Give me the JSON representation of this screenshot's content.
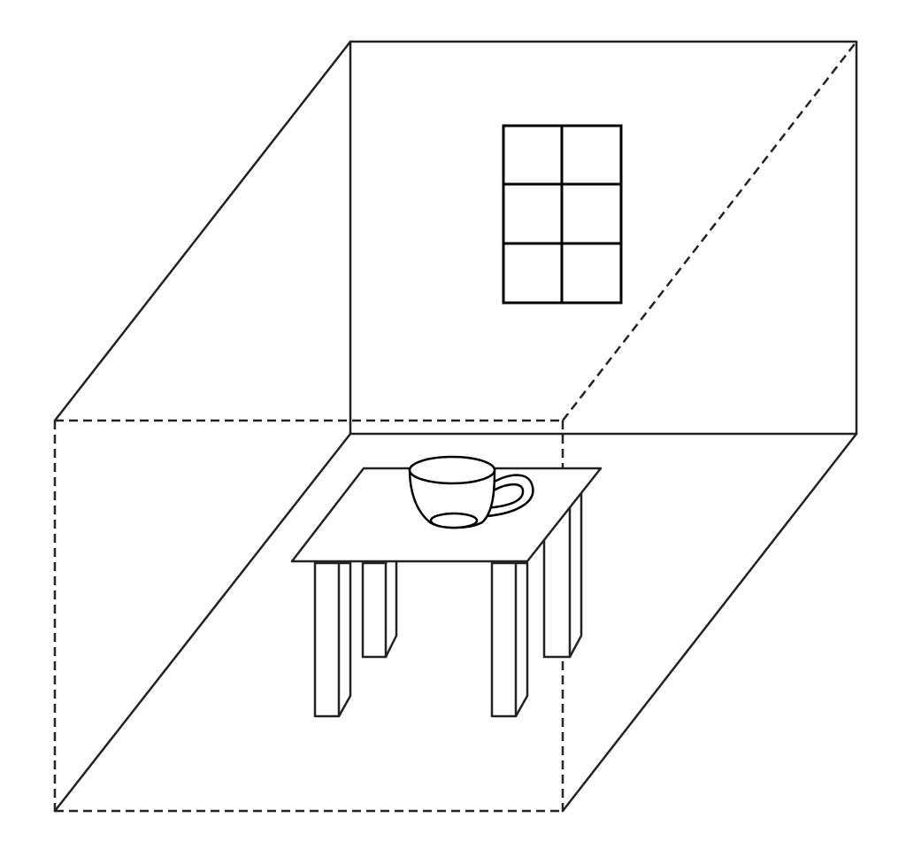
{
  "diagram": {
    "line_color": "#222222",
    "background": "#ffffff",
    "objects": [
      "room-box",
      "window-icon",
      "table",
      "cup-icon"
    ]
  }
}
